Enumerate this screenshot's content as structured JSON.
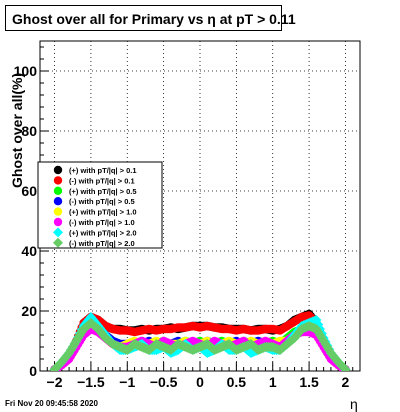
{
  "title": "Ghost over all for Primary vs  η at pT > 0.11",
  "footer": "Fri Nov 20 09:45:58 2020",
  "chart_data": {
    "type": "scatter",
    "xlabel": "η",
    "ylabel": "Ghost over all(%)",
    "xlim": [
      -2.2,
      2.2
    ],
    "ylim": [
      0,
      110
    ],
    "xticks": [
      "−2",
      "−1.5",
      "−1",
      "−0.5",
      "0",
      "0.5",
      "1",
      "1.5",
      "2"
    ],
    "xtick_values": [
      -2,
      -1.5,
      -1,
      -0.5,
      0,
      0.5,
      1,
      1.5,
      2
    ],
    "yticks": [
      "0",
      "20",
      "40",
      "60",
      "80",
      "100"
    ],
    "ytick_values": [
      0,
      20,
      40,
      60,
      80,
      100
    ],
    "grid": true,
    "legend_placement": "left-middle",
    "x": [
      -2.0,
      -1.9,
      -1.8,
      -1.7,
      -1.6,
      -1.5,
      -1.4,
      -1.3,
      -1.2,
      -1.1,
      -1.0,
      -0.9,
      -0.8,
      -0.7,
      -0.6,
      -0.5,
      -0.4,
      -0.3,
      -0.2,
      -0.1,
      0.0,
      0.1,
      0.2,
      0.3,
      0.4,
      0.5,
      0.6,
      0.7,
      0.8,
      0.9,
      1.0,
      1.1,
      1.2,
      1.3,
      1.4,
      1.5,
      1.6,
      1.7,
      1.8,
      1.9,
      2.0
    ],
    "series": [
      {
        "name": "(+) with pT/|q| > 0.1",
        "color": "#000000",
        "marker": "circle",
        "values": [
          0.5,
          2,
          5,
          10,
          16,
          18,
          17,
          15,
          14,
          14,
          13.5,
          13.5,
          14,
          13.5,
          14,
          14,
          14.5,
          14,
          14.5,
          15,
          15,
          15,
          14.5,
          14.5,
          14,
          14,
          14,
          13.5,
          14,
          14,
          13.5,
          14,
          15,
          17,
          18,
          19,
          16,
          10,
          5,
          2,
          0.5
        ]
      },
      {
        "name": "(-) with pT/|q| > 0.1",
        "color": "#ff0000",
        "marker": "circle",
        "values": [
          0.5,
          2,
          5,
          10,
          16,
          18,
          17,
          15,
          14,
          13.5,
          13.5,
          13,
          13.5,
          14,
          13.5,
          14,
          14,
          14.5,
          14.5,
          15,
          14.5,
          15,
          14.5,
          14,
          14,
          13.5,
          14,
          13.5,
          13.5,
          14,
          14,
          13.5,
          15,
          16.5,
          18,
          18.5,
          16,
          10,
          5,
          2,
          0.5
        ]
      },
      {
        "name": "(+) with pT/|q| > 0.5",
        "color": "#00ff00",
        "marker": "circle",
        "values": [
          0.5,
          2,
          5,
          9,
          14,
          15,
          14,
          12,
          10,
          9,
          8,
          9,
          10,
          8,
          9,
          10,
          8,
          9,
          10,
          9,
          10,
          8,
          9,
          10,
          9,
          8,
          10,
          9,
          8,
          9,
          10,
          9,
          11,
          13,
          14,
          15,
          13,
          9,
          5,
          2,
          0.5
        ]
      },
      {
        "name": "(-) with pT/|q| > 0.5",
        "color": "#0000ff",
        "marker": "circle",
        "values": [
          0.5,
          2,
          5,
          9,
          13,
          15,
          14,
          12,
          10,
          9,
          9,
          8,
          9,
          10,
          8,
          9,
          9,
          10,
          8,
          9,
          9,
          10,
          9,
          8,
          9,
          10,
          8,
          9,
          10,
          9,
          8,
          9,
          10,
          12,
          14,
          14,
          13,
          9,
          5,
          2,
          0.5
        ]
      },
      {
        "name": "(+) with pT/|q| > 1.0",
        "color": "#ffff00",
        "marker": "circle",
        "values": [
          0.5,
          2,
          4,
          8,
          13,
          14,
          13,
          11,
          9,
          8,
          9,
          10,
          8,
          9,
          10,
          8,
          9,
          9,
          10,
          8,
          9,
          10,
          8,
          9,
          10,
          9,
          8,
          10,
          9,
          8,
          9,
          10,
          10,
          12,
          13,
          14,
          12,
          8,
          4,
          2,
          0.5
        ]
      },
      {
        "name": "(-) with pT/|q| > 1.0",
        "color": "#ff00ff",
        "marker": "circle",
        "values": [
          0.5,
          2,
          4,
          8,
          12,
          14,
          13,
          11,
          9,
          8,
          8,
          9,
          10,
          9,
          8,
          10,
          9,
          8,
          9,
          10,
          9,
          8,
          10,
          9,
          8,
          9,
          10,
          8,
          9,
          10,
          9,
          8,
          10,
          12,
          13,
          13,
          12,
          8,
          4,
          2,
          0.5
        ]
      },
      {
        "name": "(+) with pT/|q| > 2.0",
        "color": "#00ffff",
        "marker": "diamond",
        "values": [
          0.5,
          3,
          6,
          10,
          15,
          18,
          15,
          12,
          9,
          7,
          7,
          8,
          9,
          7,
          7,
          8,
          6,
          7,
          9,
          7,
          8,
          6,
          7,
          9,
          7,
          7,
          8,
          6,
          7,
          8,
          7,
          7,
          9,
          12,
          15,
          16,
          17,
          11,
          6,
          3,
          0.5
        ]
      },
      {
        "name": "(-) with pT/|q| > 2.0",
        "color": "#66cc66",
        "marker": "diamond",
        "values": [
          0.5,
          3,
          6,
          10,
          14,
          16,
          14,
          11,
          9,
          8,
          7,
          9,
          8,
          7,
          9,
          8,
          7,
          9,
          8,
          7,
          8,
          9,
          7,
          8,
          9,
          7,
          8,
          9,
          7,
          8,
          8,
          7,
          9,
          11,
          14,
          15,
          14,
          10,
          6,
          3,
          0.5
        ]
      }
    ]
  }
}
